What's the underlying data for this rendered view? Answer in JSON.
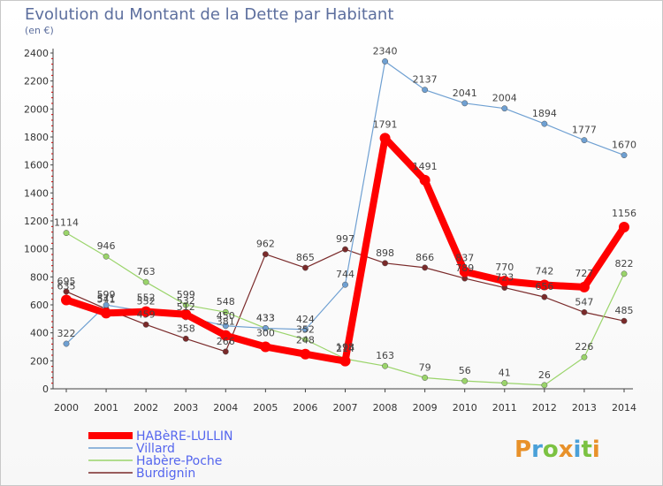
{
  "title": "Evolution du Montant de la Dette par Habitant",
  "unit": "(en €)",
  "brand": "Proxiti",
  "colors": {
    "HABeRE-LULLIN": "#ff0000",
    "Villard": "#6fa0d2",
    "Habère-Poche": "#9ad46a",
    "Burdignin": "#7a2a2a"
  },
  "chart_data": {
    "type": "line",
    "x": [
      2000,
      2001,
      2002,
      2003,
      2004,
      2005,
      2006,
      2007,
      2008,
      2009,
      2010,
      2011,
      2012,
      2013,
      2014
    ],
    "ylim": [
      0,
      2400
    ],
    "yticks": [
      0,
      200,
      400,
      600,
      800,
      1000,
      1200,
      1400,
      1600,
      1800,
      2000,
      2200,
      2400
    ],
    "grid": false,
    "legend": "bottom-left",
    "series": [
      {
        "name": "HABèRE-LULLIN",
        "values": [
          635,
          541,
          552,
          532,
          381,
          300,
          248,
          198,
          1791,
          1491,
          837,
          770,
          742,
          727,
          1156
        ]
      },
      {
        "name": "Villard",
        "values": [
          322,
          599,
          552,
          512,
          450,
          433,
          424,
          744,
          2340,
          2137,
          2041,
          2004,
          1894,
          1777,
          1670
        ]
      },
      {
        "name": "Habère-Poche",
        "values": [
          1114,
          946,
          763,
          599,
          548,
          433,
          352,
          214,
          163,
          79,
          56,
          41,
          26,
          226,
          822
        ]
      },
      {
        "name": "Burdignin",
        "values": [
          695,
          571,
          459,
          358,
          266,
          962,
          865,
          997,
          898,
          866,
          789,
          723,
          656,
          547,
          485
        ]
      }
    ]
  }
}
